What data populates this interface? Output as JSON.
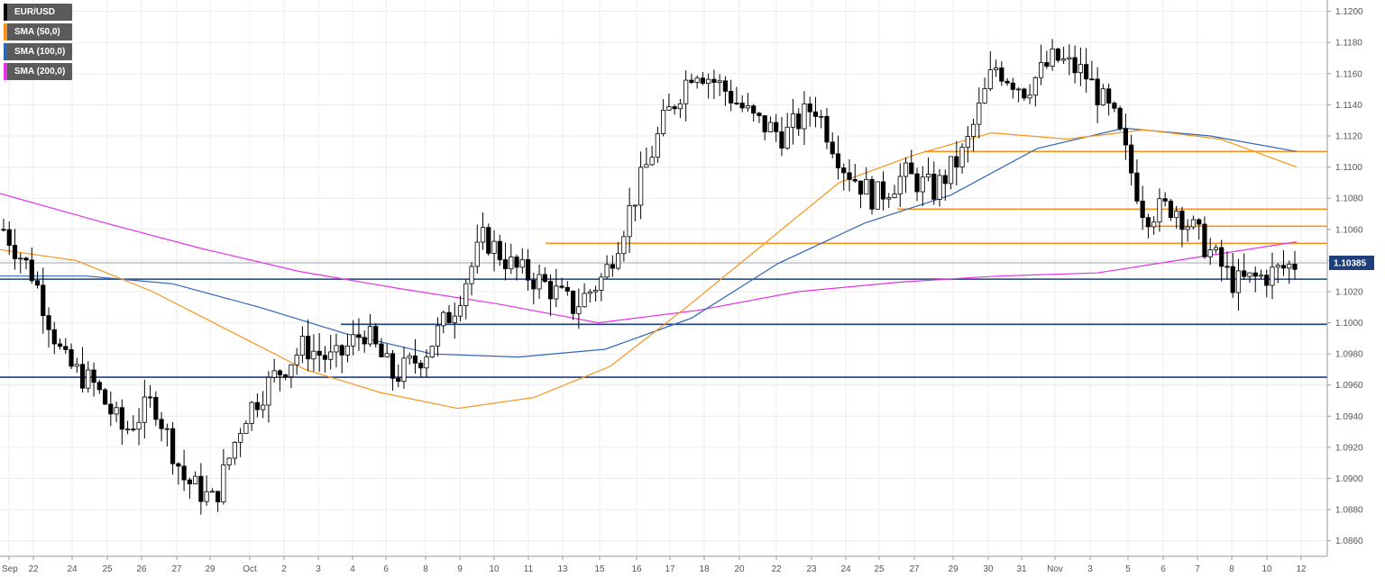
{
  "legend": [
    {
      "label": "EUR/USD",
      "color": "#000000"
    },
    {
      "label": "SMA (50,0)",
      "color": "#f7931a"
    },
    {
      "label": "SMA (100,0)",
      "color": "#2e66b5"
    },
    {
      "label": "SMA (200,0)",
      "color": "#e633e6"
    }
  ],
  "chart_data": {
    "type": "candlestick",
    "symbol": "EUR/USD",
    "ylim": [
      1.085,
      1.1205
    ],
    "y_ticks": [
      "1.1200",
      "1.1180",
      "1.1160",
      "1.1140",
      "1.1120",
      "1.1100",
      "1.1080",
      "1.1060",
      "1.1040",
      "1.1020",
      "1.1000",
      "1.0980",
      "1.0960",
      "1.0940",
      "1.0920",
      "1.0900",
      "1.0880",
      "1.0860"
    ],
    "x_ticks": [
      "Sep",
      "22",
      "24",
      "25",
      "26",
      "27",
      "29",
      "Oct",
      "2",
      "3",
      "4",
      "6",
      "8",
      "9",
      "10",
      "11",
      "13",
      "15",
      "16",
      "17",
      "18",
      "20",
      "22",
      "23",
      "24",
      "25",
      "27",
      "29",
      "30",
      "31",
      "Nov",
      "3",
      "5",
      "6",
      "7",
      "8",
      "10",
      "12"
    ],
    "current_price": "1.10385",
    "horizontal_levels": [
      {
        "value": 1.111,
        "color": "#f7931a"
      },
      {
        "value": 1.1073,
        "color": "#f7931a"
      },
      {
        "value": 1.1062,
        "color": "#f7931a"
      },
      {
        "value": 1.1051,
        "color": "#f7931a"
      },
      {
        "value": 1.1028,
        "color": "#1f3f7a"
      },
      {
        "value": 1.0999,
        "color": "#1f3f7a"
      },
      {
        "value": 1.0965,
        "color": "#1f3f7a"
      }
    ],
    "key_closes": [
      1.106,
      1.103,
      1.0975,
      1.096,
      1.093,
      1.095,
      1.09,
      1.0885,
      1.094,
      1.0965,
      1.0985,
      1.0975,
      1.0995,
      1.0965,
      1.098,
      1.101,
      1.1055,
      1.1035,
      1.1025,
      1.101,
      1.103,
      1.108,
      1.113,
      1.1165,
      1.115,
      1.113,
      1.112,
      1.114,
      1.11,
      1.108,
      1.1095,
      1.1085,
      1.111,
      1.1165,
      1.115,
      1.117,
      1.116,
      1.113,
      1.107,
      1.1075,
      1.105,
      1.1025,
      1.103,
      1.1038
    ],
    "sma50": [
      1.1047,
      1.104,
      1.102,
      1.0995,
      1.097,
      1.0955,
      1.0945,
      1.0952,
      1.0972,
      1.101,
      1.105,
      1.109,
      1.1108,
      1.1122,
      1.1118,
      1.1124,
      1.1118,
      1.11
    ],
    "sma100": [
      1.103,
      1.103,
      1.1025,
      1.101,
      1.0993,
      1.098,
      1.0978,
      1.0983,
      1.1003,
      1.1038,
      1.1064,
      1.1082,
      1.1112,
      1.1125,
      1.112,
      1.111
    ],
    "sma200": [
      1.1083,
      1.1065,
      1.1048,
      1.1033,
      1.1022,
      1.1012,
      1.1,
      1.1008,
      1.102,
      1.1026,
      1.103,
      1.1032,
      1.1042,
      1.1052
    ]
  }
}
